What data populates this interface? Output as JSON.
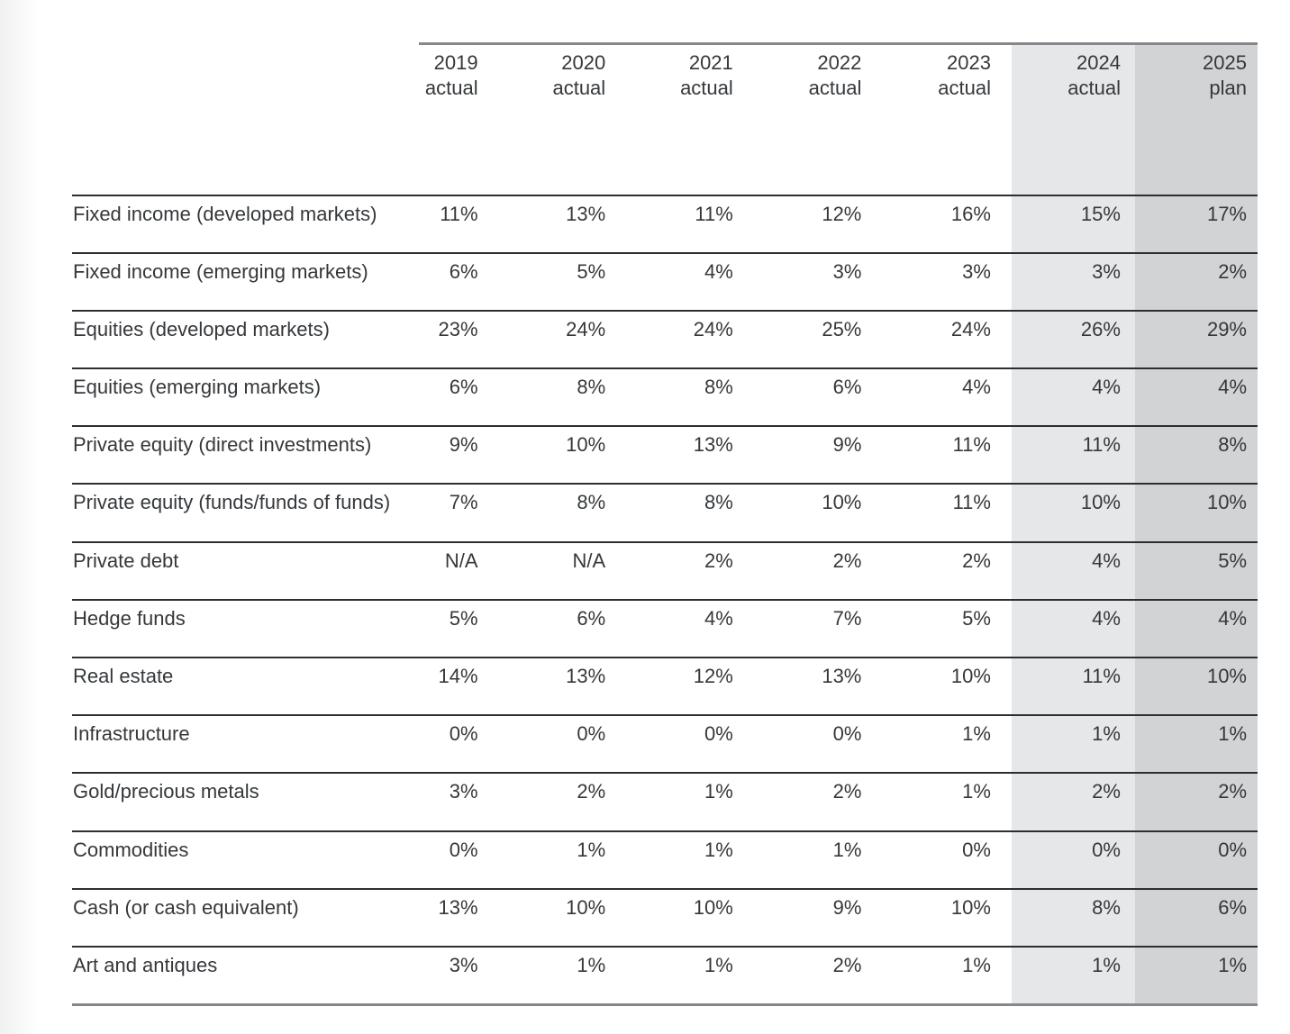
{
  "colors": {
    "column_2024_highlight": "#e6e7e8",
    "column_2025_highlight": "#d2d3d4",
    "separator_dark": "#2c2e30",
    "separator_gray": "#85878a",
    "text": "#35383b"
  },
  "table": {
    "columns": [
      {
        "year": "2019",
        "qualifier": "actual"
      },
      {
        "year": "2020",
        "qualifier": "actual"
      },
      {
        "year": "2021",
        "qualifier": "actual"
      },
      {
        "year": "2022",
        "qualifier": "actual"
      },
      {
        "year": "2023",
        "qualifier": "actual"
      },
      {
        "year": "2024",
        "qualifier": "actual"
      },
      {
        "year": "2025",
        "qualifier": "plan"
      }
    ],
    "rows": [
      {
        "label": "Fixed income (developed markets)",
        "values": [
          "11%",
          "13%",
          "11%",
          "12%",
          "16%",
          "15%",
          "17%"
        ]
      },
      {
        "label": "Fixed income (emerging markets)",
        "values": [
          "6%",
          "5%",
          "4%",
          "3%",
          "3%",
          "3%",
          "2%"
        ]
      },
      {
        "label": "Equities (developed markets)",
        "values": [
          "23%",
          "24%",
          "24%",
          "25%",
          "24%",
          "26%",
          "29%"
        ]
      },
      {
        "label": "Equities (emerging markets)",
        "values": [
          "6%",
          "8%",
          "8%",
          "6%",
          "4%",
          "4%",
          "4%"
        ]
      },
      {
        "label": "Private equity (direct investments)",
        "values": [
          "9%",
          "10%",
          "13%",
          "9%",
          "11%",
          "11%",
          "8%"
        ]
      },
      {
        "label": "Private equity (funds/funds of funds)",
        "values": [
          "7%",
          "8%",
          "8%",
          "10%",
          "11%",
          "10%",
          "10%"
        ]
      },
      {
        "label": "Private debt",
        "values": [
          "N/A",
          "N/A",
          "2%",
          "2%",
          "2%",
          "4%",
          "5%"
        ]
      },
      {
        "label": "Hedge funds",
        "values": [
          "5%",
          "6%",
          "4%",
          "7%",
          "5%",
          "4%",
          "4%"
        ]
      },
      {
        "label": "Real estate",
        "values": [
          "14%",
          "13%",
          "12%",
          "13%",
          "10%",
          "11%",
          "10%"
        ]
      },
      {
        "label": "Infrastructure",
        "values": [
          "0%",
          "0%",
          "0%",
          "0%",
          "1%",
          "1%",
          "1%"
        ]
      },
      {
        "label": "Gold/precious metals",
        "values": [
          "3%",
          "2%",
          "1%",
          "2%",
          "1%",
          "2%",
          "2%"
        ]
      },
      {
        "label": "Commodities",
        "values": [
          "0%",
          "1%",
          "1%",
          "1%",
          "0%",
          "0%",
          "0%"
        ]
      },
      {
        "label": "Cash (or cash equivalent)",
        "values": [
          "13%",
          "10%",
          "10%",
          "9%",
          "10%",
          "8%",
          "6%"
        ]
      },
      {
        "label": "Art and antiques",
        "values": [
          "3%",
          "1%",
          "1%",
          "2%",
          "1%",
          "1%",
          "1%"
        ]
      }
    ]
  }
}
